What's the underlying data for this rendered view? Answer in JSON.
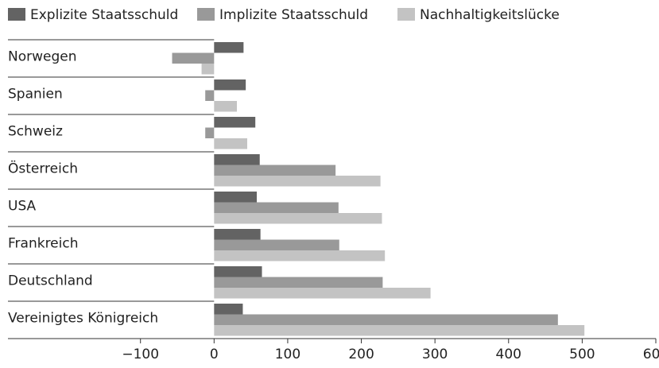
{
  "chart_data": {
    "type": "hbar",
    "categories": [
      "Norwegen",
      "Spanien",
      "Schweiz",
      "Österreich",
      "USA",
      "Frankreich",
      "Deutschland",
      "Vereinigtes Königreich"
    ],
    "series": [
      {
        "name": "Explizite Staatsschuld",
        "color": "#636363",
        "values": [
          40,
          43,
          56,
          62,
          58,
          63,
          65,
          39
        ]
      },
      {
        "name": "Implizite Staatsschuld",
        "color": "#999999",
        "values": [
          -57,
          -12,
          -12,
          165,
          169,
          170,
          229,
          467
        ]
      },
      {
        "name": "Nachhaltigkeitslücke",
        "color": "#c3c3c3",
        "values": [
          -17,
          31,
          45,
          226,
          228,
          232,
          294,
          503
        ]
      }
    ],
    "xlim": [
      -280,
      600
    ],
    "xticks": [
      {
        "value": -100,
        "label": "−100"
      },
      0,
      100,
      200,
      300,
      400,
      500,
      600
    ],
    "legend": "top"
  }
}
